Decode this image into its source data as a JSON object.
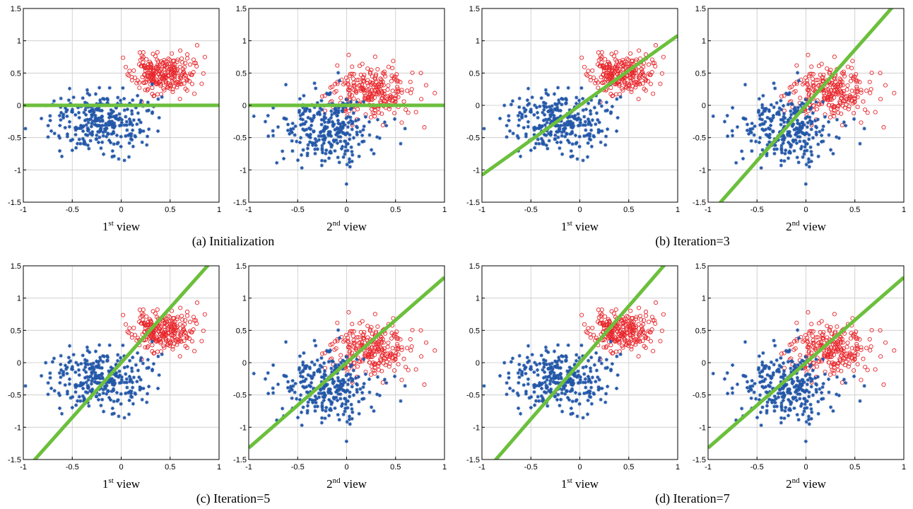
{
  "figure": {
    "captions": [
      "(a) Initialization",
      "(b) Iteration=3",
      "(c) Iteration=5",
      "(d) Iteration=7"
    ]
  },
  "colors": {
    "class_pos": "#e8262b",
    "class_neg": "#2357a8",
    "boundary": "#6cbf3c",
    "grid": "#c8c8c8",
    "axis": "#000000"
  },
  "chart_data": [
    {
      "type": "scatter",
      "group": "(a) Initialization",
      "view": "1",
      "xlabel_base": "1",
      "xlabel_sup": "st",
      "xlabel_rest": " view",
      "xlim": [
        -1,
        1
      ],
      "ylim": [
        -1.5,
        1.5
      ],
      "xticks": [
        "-1",
        "-0.5",
        "0",
        "0.5",
        "1"
      ],
      "yticks": [
        "-1.5",
        "-1",
        "-0.5",
        "0",
        "0.5",
        "1",
        "1.5"
      ],
      "series": [
        {
          "name": "positive",
          "marker": "circle",
          "color": "#e8262b",
          "center": [
            0.42,
            0.48
          ],
          "spread": [
            0.15,
            0.15
          ],
          "n": 260,
          "seed": 11
        },
        {
          "name": "negative",
          "marker": "star",
          "color": "#2357a8",
          "center": [
            -0.2,
            -0.25
          ],
          "spread": [
            0.25,
            0.22
          ],
          "n": 300,
          "seed": 12
        }
      ],
      "boundary": {
        "slope": 0,
        "intercept": 0
      }
    },
    {
      "type": "scatter",
      "group": "(a) Initialization",
      "view": "2",
      "xlabel_base": "2",
      "xlabel_sup": "nd",
      "xlabel_rest": " view",
      "xlim": [
        -1,
        1
      ],
      "ylim": [
        -1.5,
        1.5
      ],
      "xticks": [
        "-1",
        "-0.5",
        "0",
        "0.5",
        "1"
      ],
      "yticks": [
        "-1.5",
        "-1",
        "-0.5",
        "0",
        "0.5",
        "1",
        "1.5"
      ],
      "series": [
        {
          "name": "positive",
          "marker": "circle",
          "color": "#e8262b",
          "center": [
            0.25,
            0.2
          ],
          "spread": [
            0.22,
            0.22
          ],
          "n": 260,
          "seed": 21
        },
        {
          "name": "negative",
          "marker": "star",
          "color": "#2357a8",
          "center": [
            -0.2,
            -0.35
          ],
          "spread": [
            0.24,
            0.26
          ],
          "n": 300,
          "seed": 22
        }
      ],
      "boundary": {
        "slope": 0,
        "intercept": 0
      }
    },
    {
      "type": "scatter",
      "group": "(b) Iteration=3",
      "view": "1",
      "xlabel_base": "1",
      "xlabel_sup": "st",
      "xlabel_rest": " view",
      "xlim": [
        -1,
        1
      ],
      "ylim": [
        -1.5,
        1.5
      ],
      "xticks": [
        "-1",
        "-0.5",
        "0",
        "0.5",
        "1"
      ],
      "yticks": [
        "-1.5",
        "-1",
        "-0.5",
        "0",
        "0.5",
        "1",
        "1.5"
      ],
      "series": [
        {
          "name": "positive",
          "marker": "circle",
          "color": "#e8262b",
          "center": [
            0.42,
            0.48
          ],
          "spread": [
            0.15,
            0.15
          ],
          "n": 260,
          "seed": 11
        },
        {
          "name": "negative",
          "marker": "star",
          "color": "#2357a8",
          "center": [
            -0.2,
            -0.25
          ],
          "spread": [
            0.25,
            0.22
          ],
          "n": 300,
          "seed": 12
        }
      ],
      "boundary": {
        "slope": 1.08,
        "intercept": 0
      }
    },
    {
      "type": "scatter",
      "group": "(b) Iteration=3",
      "view": "2",
      "xlabel_base": "2",
      "xlabel_sup": "nd",
      "xlabel_rest": " view",
      "xlim": [
        -1,
        1
      ],
      "ylim": [
        -1.5,
        1.5
      ],
      "xticks": [
        "-1",
        "-0.5",
        "0",
        "0.5",
        "1"
      ],
      "yticks": [
        "-1.5",
        "-1",
        "-0.5",
        "0",
        "0.5",
        "1",
        "1.5"
      ],
      "series": [
        {
          "name": "positive",
          "marker": "circle",
          "color": "#e8262b",
          "center": [
            0.25,
            0.2
          ],
          "spread": [
            0.22,
            0.22
          ],
          "n": 260,
          "seed": 21
        },
        {
          "name": "negative",
          "marker": "star",
          "color": "#2357a8",
          "center": [
            -0.2,
            -0.35
          ],
          "spread": [
            0.24,
            0.26
          ],
          "n": 300,
          "seed": 22
        }
      ],
      "boundary": {
        "slope": 1.72,
        "intercept": 0
      }
    },
    {
      "type": "scatter",
      "group": "(c) Iteration=5",
      "view": "1",
      "xlabel_base": "1",
      "xlabel_sup": "st",
      "xlabel_rest": " view",
      "xlim": [
        -1,
        1
      ],
      "ylim": [
        -1.5,
        1.5
      ],
      "xticks": [
        "-1",
        "-0.5",
        "0",
        "0.5",
        "1"
      ],
      "yticks": [
        "-1.5",
        "-1",
        "-0.5",
        "0",
        "0.5",
        "1",
        "1.5"
      ],
      "series": [
        {
          "name": "positive",
          "marker": "circle",
          "color": "#e8262b",
          "center": [
            0.42,
            0.48
          ],
          "spread": [
            0.15,
            0.15
          ],
          "n": 260,
          "seed": 11
        },
        {
          "name": "negative",
          "marker": "star",
          "color": "#2357a8",
          "center": [
            -0.2,
            -0.25
          ],
          "spread": [
            0.25,
            0.22
          ],
          "n": 300,
          "seed": 12
        }
      ],
      "boundary": {
        "slope": 1.7,
        "intercept": 0
      }
    },
    {
      "type": "scatter",
      "group": "(c) Iteration=5",
      "view": "2",
      "xlabel_base": "2",
      "xlabel_sup": "nd",
      "xlabel_rest": " view",
      "xlim": [
        -1,
        1
      ],
      "ylim": [
        -1.5,
        1.5
      ],
      "xticks": [
        "-1",
        "-0.5",
        "0",
        "0.5",
        "1"
      ],
      "yticks": [
        "-1.5",
        "-1",
        "-0.5",
        "0",
        "0.5",
        "1",
        "1.5"
      ],
      "series": [
        {
          "name": "positive",
          "marker": "circle",
          "color": "#e8262b",
          "center": [
            0.25,
            0.2
          ],
          "spread": [
            0.22,
            0.22
          ],
          "n": 260,
          "seed": 21
        },
        {
          "name": "negative",
          "marker": "star",
          "color": "#2357a8",
          "center": [
            -0.2,
            -0.35
          ],
          "spread": [
            0.24,
            0.26
          ],
          "n": 300,
          "seed": 22
        }
      ],
      "boundary": {
        "slope": 1.32,
        "intercept": 0
      }
    },
    {
      "type": "scatter",
      "group": "(d) Iteration=7",
      "view": "1",
      "xlabel_base": "1",
      "xlabel_sup": "st",
      "xlabel_rest": " view",
      "xlim": [
        -1,
        1
      ],
      "ylim": [
        -1.5,
        1.5
      ],
      "xticks": [
        "-1",
        "-0.5",
        "0",
        "0.5",
        "1"
      ],
      "yticks": [
        "-1.5",
        "-1",
        "-0.5",
        "0",
        "0.5",
        "1",
        "1.5"
      ],
      "series": [
        {
          "name": "positive",
          "marker": "circle",
          "color": "#e8262b",
          "center": [
            0.42,
            0.48
          ],
          "spread": [
            0.15,
            0.15
          ],
          "n": 260,
          "seed": 11
        },
        {
          "name": "negative",
          "marker": "star",
          "color": "#2357a8",
          "center": [
            -0.2,
            -0.25
          ],
          "spread": [
            0.25,
            0.22
          ],
          "n": 300,
          "seed": 12
        }
      ],
      "boundary": {
        "slope": 1.75,
        "intercept": 0
      }
    },
    {
      "type": "scatter",
      "group": "(d) Iteration=7",
      "view": "2",
      "xlabel_base": "2",
      "xlabel_sup": "nd",
      "xlabel_rest": " view",
      "xlim": [
        -1,
        1
      ],
      "ylim": [
        -1.5,
        1.5
      ],
      "xticks": [
        "-1",
        "-0.5",
        "0",
        "0.5",
        "1"
      ],
      "yticks": [
        "-1.5",
        "-1",
        "-0.5",
        "0",
        "0.5",
        "1",
        "1.5"
      ],
      "series": [
        {
          "name": "positive",
          "marker": "circle",
          "color": "#e8262b",
          "center": [
            0.25,
            0.2
          ],
          "spread": [
            0.22,
            0.22
          ],
          "n": 260,
          "seed": 21
        },
        {
          "name": "negative",
          "marker": "star",
          "color": "#2357a8",
          "center": [
            -0.2,
            -0.35
          ],
          "spread": [
            0.24,
            0.26
          ],
          "n": 300,
          "seed": 22
        }
      ],
      "boundary": {
        "slope": 1.32,
        "intercept": 0
      }
    }
  ]
}
